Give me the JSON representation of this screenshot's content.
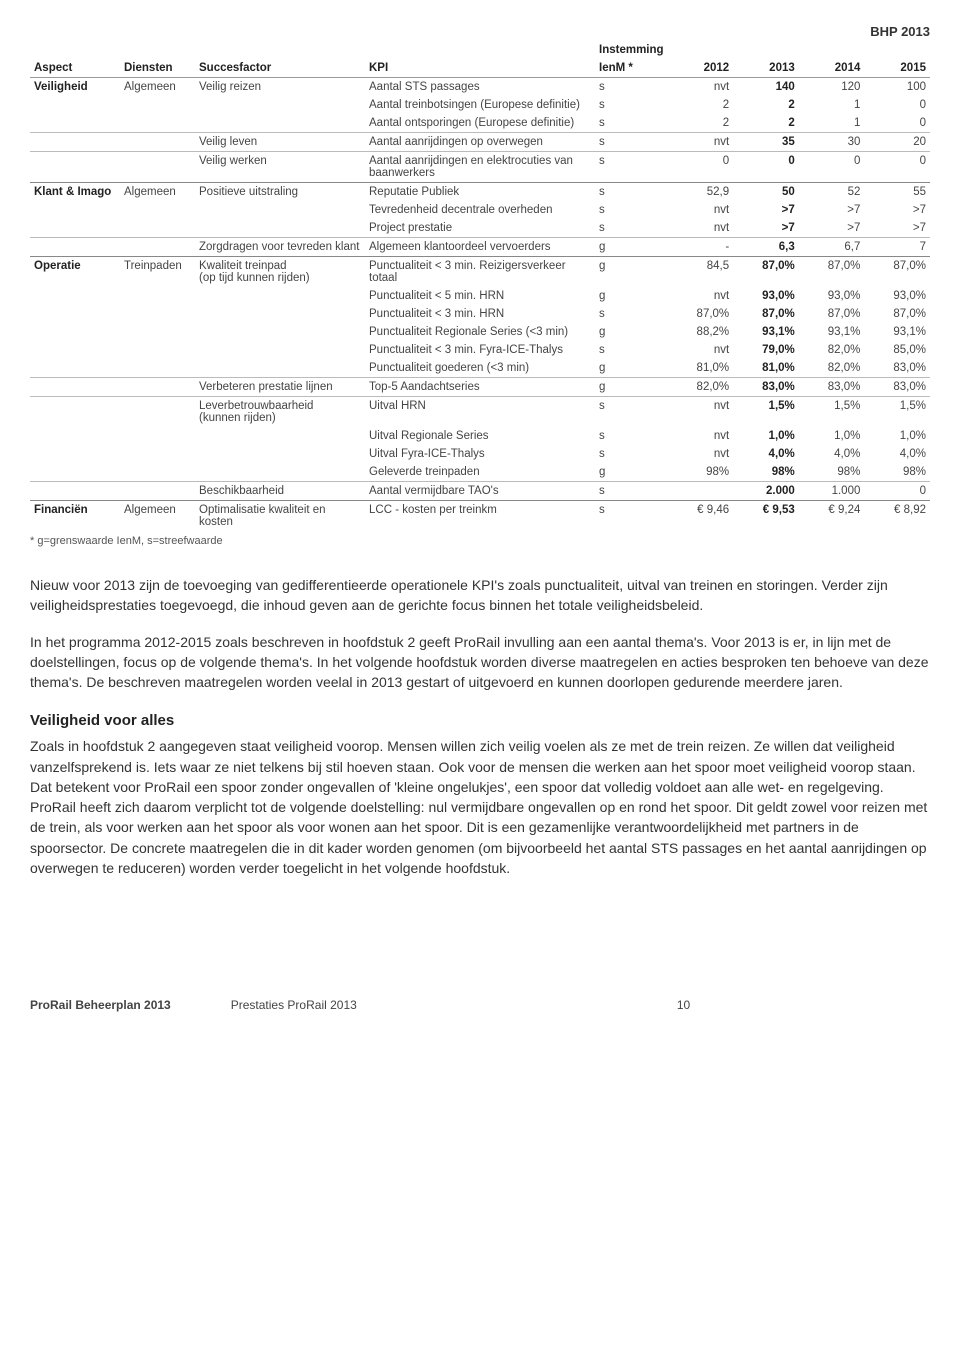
{
  "document_label": "BHP 2013",
  "table": {
    "headers": {
      "aspect": "Aspect",
      "diensten": "Diensten",
      "succesfactor": "Succesfactor",
      "kpi": "KPI",
      "instemming_top": "Instemming",
      "instemming": "IenM *",
      "y2012": "2012",
      "y2013": "2013",
      "y2014": "2014",
      "y2015": "2015"
    },
    "rows": [
      {
        "section": true,
        "aspect": "Veiligheid",
        "diensten": "Algemeen",
        "sf": "Veilig reizen",
        "kpi": "Aantal STS passages",
        "ienm": "s",
        "v": [
          "nvt",
          "140",
          "120",
          "100"
        ],
        "bold": [
          false,
          true,
          false,
          false
        ]
      },
      {
        "kpi": "Aantal treinbotsingen (Europese definitie)",
        "ienm": "s",
        "v": [
          "2",
          "2",
          "1",
          "0"
        ],
        "bold": [
          false,
          true,
          false,
          false
        ]
      },
      {
        "kpi": "Aantal ontsporingen (Europese definitie)",
        "ienm": "s",
        "v": [
          "2",
          "2",
          "1",
          "0"
        ],
        "bold": [
          false,
          true,
          false,
          false
        ]
      },
      {
        "sub": true,
        "sf": "Veilig leven",
        "kpi": "Aantal aanrijdingen op overwegen",
        "ienm": "s",
        "v": [
          "nvt",
          "35",
          "30",
          "20"
        ],
        "bold": [
          false,
          true,
          false,
          false
        ]
      },
      {
        "sub": true,
        "sf": "Veilig werken",
        "kpi": "Aantal aanrijdingen en elektrocuties van baanwerkers",
        "ienm": "s",
        "v": [
          "0",
          "0",
          "0",
          "0"
        ],
        "bold": [
          false,
          true,
          false,
          false
        ]
      },
      {
        "section": true,
        "aspect": "Klant & Imago",
        "diensten": "Algemeen",
        "sf": "Positieve uitstraling",
        "kpi": "Reputatie Publiek",
        "ienm": "s",
        "v": [
          "52,9",
          "50",
          "52",
          "55"
        ],
        "bold": [
          false,
          true,
          false,
          false
        ]
      },
      {
        "kpi": "Tevredenheid decentrale overheden",
        "ienm": "s",
        "v": [
          "nvt",
          ">7",
          ">7",
          ">7"
        ],
        "bold": [
          false,
          true,
          false,
          false
        ]
      },
      {
        "kpi": "Project prestatie",
        "ienm": "s",
        "v": [
          "nvt",
          ">7",
          ">7",
          ">7"
        ],
        "bold": [
          false,
          true,
          false,
          false
        ]
      },
      {
        "sub": true,
        "sf": "Zorgdragen voor tevreden klant",
        "kpi": "Algemeen klantoordeel vervoerders",
        "ienm": "g",
        "v": [
          "-",
          "6,3",
          "6,7",
          "7"
        ],
        "bold": [
          false,
          true,
          false,
          false
        ]
      },
      {
        "section": true,
        "aspect": "Operatie",
        "diensten": "Treinpaden",
        "sf": "Kwaliteit treinpad",
        "sf2": "(op tijd kunnen rijden)",
        "kpi": "Punctualiteit < 3 min. Reizigersverkeer totaal",
        "ienm": "g",
        "v": [
          "84,5",
          "87,0%",
          "87,0%",
          "87,0%"
        ],
        "bold": [
          false,
          true,
          false,
          false
        ]
      },
      {
        "kpi": "Punctualiteit < 5 min. HRN",
        "ienm": "g",
        "v": [
          "nvt",
          "93,0%",
          "93,0%",
          "93,0%"
        ],
        "bold": [
          false,
          true,
          false,
          false
        ]
      },
      {
        "kpi": "Punctualiteit < 3 min. HRN",
        "ienm": "s",
        "v": [
          "87,0%",
          "87,0%",
          "87,0%",
          "87,0%"
        ],
        "bold": [
          false,
          true,
          false,
          false
        ]
      },
      {
        "kpi": "Punctualiteit Regionale Series (<3 min)",
        "ienm": "g",
        "v": [
          "88,2%",
          "93,1%",
          "93,1%",
          "93,1%"
        ],
        "bold": [
          false,
          true,
          false,
          false
        ]
      },
      {
        "kpi": "Punctualiteit < 3 min. Fyra-ICE-Thalys",
        "ienm": "s",
        "v": [
          "nvt",
          "79,0%",
          "82,0%",
          "85,0%"
        ],
        "bold": [
          false,
          true,
          false,
          false
        ]
      },
      {
        "kpi": "Punctualiteit goederen (<3 min)",
        "ienm": "g",
        "v": [
          "81,0%",
          "81,0%",
          "82,0%",
          "83,0%"
        ],
        "bold": [
          false,
          true,
          false,
          false
        ]
      },
      {
        "sub": true,
        "sf": "Verbeteren prestatie lijnen",
        "kpi": "Top-5 Aandachtseries",
        "ienm": "g",
        "v": [
          "82,0%",
          "83,0%",
          "83,0%",
          "83,0%"
        ],
        "bold": [
          false,
          true,
          false,
          false
        ]
      },
      {
        "sub": true,
        "sf": "Leverbetrouwbaarheid",
        "sf2": "(kunnen rijden)",
        "kpi": "Uitval HRN",
        "ienm": "s",
        "v": [
          "nvt",
          "1,5%",
          "1,5%",
          "1,5%"
        ],
        "bold": [
          false,
          true,
          false,
          false
        ]
      },
      {
        "kpi": "Uitval Regionale Series",
        "ienm": "s",
        "v": [
          "nvt",
          "1,0%",
          "1,0%",
          "1,0%"
        ],
        "bold": [
          false,
          true,
          false,
          false
        ]
      },
      {
        "kpi": "Uitval Fyra-ICE-Thalys",
        "ienm": "s",
        "v": [
          "nvt",
          "4,0%",
          "4,0%",
          "4,0%"
        ],
        "bold": [
          false,
          true,
          false,
          false
        ]
      },
      {
        "kpi": "Geleverde treinpaden",
        "ienm": "g",
        "v": [
          "98%",
          "98%",
          "98%",
          "98%"
        ],
        "bold": [
          false,
          true,
          false,
          false
        ]
      },
      {
        "sub": true,
        "sf": "Beschikbaarheid",
        "kpi": "Aantal vermijdbare TAO's",
        "ienm": "s",
        "v": [
          "",
          "2.000",
          "1.000",
          "0"
        ],
        "bold": [
          false,
          true,
          false,
          false
        ]
      },
      {
        "section": true,
        "foot": true,
        "aspect": "Financiën",
        "diensten": "Algemeen",
        "sf": "Optimalisatie kwaliteit en kosten",
        "kpi": "LCC - kosten per treinkm",
        "ienm": "s",
        "v": [
          "€ 9,46",
          "€ 9,53",
          "€ 9,24",
          "€ 8,92"
        ],
        "bold": [
          false,
          true,
          false,
          false
        ]
      }
    ]
  },
  "legend": "* g=grenswaarde IenM,  s=streefwaarde",
  "paragraphs": [
    "Nieuw voor 2013 zijn de toevoeging van gedifferentieerde operationele KPI's zoals punctualiteit, uitval van treinen en storingen. Verder zijn veiligheidsprestaties toegevoegd, die inhoud geven aan de gerichte focus binnen het totale veiligheidsbeleid.",
    "In het programma 2012-2015 zoals beschreven in hoofdstuk 2 geeft ProRail invulling aan een aantal thema's. Voor 2013 is er, in lijn met de doelstellingen, focus op de volgende thema's. In het volgende hoofdstuk worden diverse maatregelen en acties besproken ten behoeve van deze thema's. De beschreven maatregelen worden veelal in 2013 gestart of uitgevoerd en kunnen doorlopen gedurende meerdere jaren."
  ],
  "heading": "Veiligheid voor alles",
  "heading_para": "Zoals in hoofdstuk 2 aangegeven staat veiligheid voorop. Mensen willen zich veilig voelen als ze met de trein reizen. Ze willen dat veiligheid vanzelfsprekend is. Iets waar ze niet telkens bij stil hoeven staan. Ook voor de mensen die werken aan het spoor moet veiligheid voorop staan. Dat betekent voor ProRail een spoor zonder ongevallen of 'kleine ongelukjes', een spoor dat volledig voldoet aan alle wet- en regelgeving. ProRail heeft zich daarom verplicht tot de volgende doelstelling: nul vermijdbare ongevallen op en rond het spoor. Dit geldt zowel voor reizen met de trein, als voor werken aan het spoor als voor wonen aan het spoor. Dit is een gezamenlijke verantwoordelijkheid met partners in de spoorsector. De concrete maatregelen die in dit kader worden genomen (om bijvoorbeeld het aantal STS passages en het aantal aanrijdingen op overwegen te reduceren) worden verder toegelicht in het volgende hoofdstuk.",
  "footer": {
    "left": "ProRail Beheerplan 2013",
    "mid": "Prestaties ProRail 2013",
    "page": "10"
  }
}
